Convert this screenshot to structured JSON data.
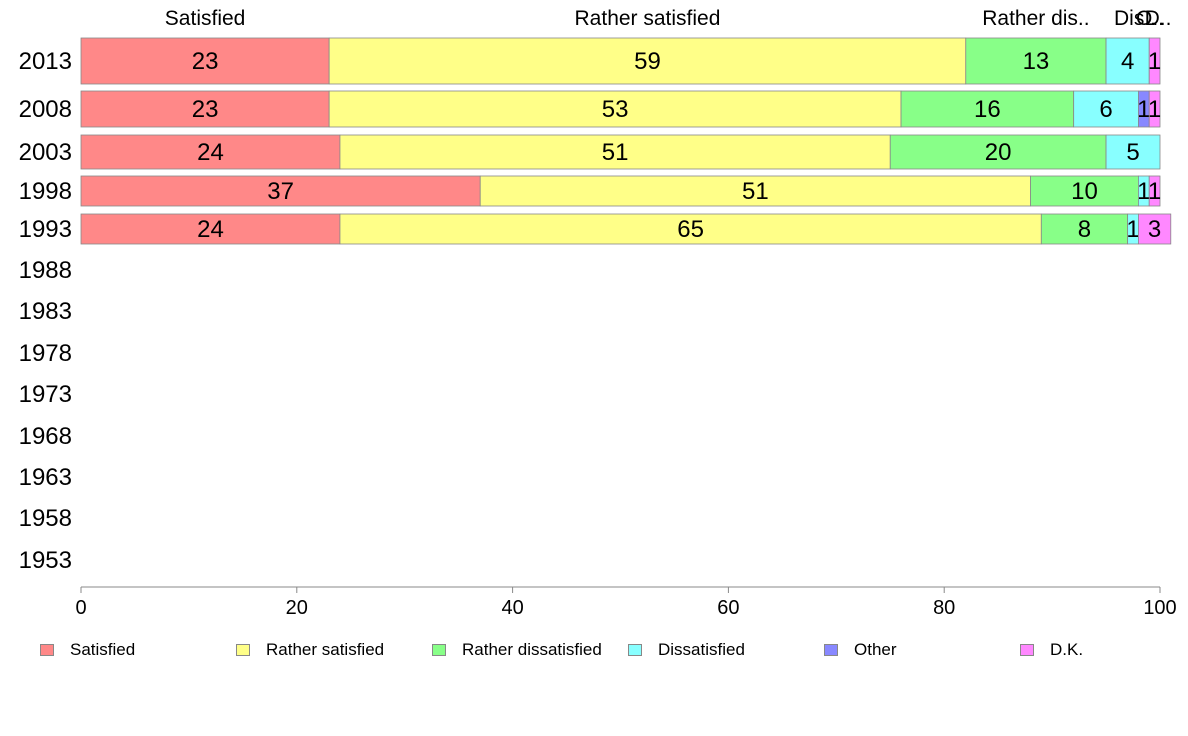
{
  "chart_data": {
    "type": "bar",
    "orientation": "horizontal",
    "stacked": true,
    "title": "",
    "xlabel": "",
    "ylabel": "",
    "xlim": [
      0,
      100
    ],
    "x_ticks": [
      "0",
      "20",
      "40",
      "60",
      "80",
      "100"
    ],
    "categories": [
      "2013",
      "2008",
      "2003",
      "1998",
      "1993",
      "1988",
      "1983",
      "1978",
      "1973",
      "1968",
      "1963",
      "1958",
      "1953"
    ],
    "top_labels": [
      "Satisfied",
      "Rather satisfied",
      "Rather dis..",
      "Dis..",
      "O..",
      "D.."
    ],
    "series": [
      {
        "name": "Satisfied",
        "color": "#ff8888",
        "values": [
          23,
          23,
          24,
          37,
          24,
          null,
          null,
          null,
          null,
          null,
          null,
          null,
          null
        ],
        "labels": [
          "23",
          "23",
          "24",
          "37",
          "24"
        ]
      },
      {
        "name": "Rather satisfied",
        "color": "#ffff88",
        "values": [
          59,
          53,
          51,
          51,
          65,
          null,
          null,
          null,
          null,
          null,
          null,
          null,
          null
        ],
        "labels": [
          "59",
          "53",
          "51",
          "51",
          "65"
        ]
      },
      {
        "name": "Rather dissatisfied",
        "color": "#88ff88",
        "values": [
          13,
          16,
          20,
          10,
          8,
          null,
          null,
          null,
          null,
          null,
          null,
          null,
          null
        ],
        "labels": [
          "13",
          "16",
          "20",
          "10",
          "8"
        ]
      },
      {
        "name": "Dissatisfied",
        "color": "#88ffff",
        "values": [
          4,
          6,
          5,
          1,
          1,
          null,
          null,
          null,
          null,
          null,
          null,
          null,
          null
        ],
        "labels": [
          "4",
          "6",
          "5",
          "1",
          "1"
        ]
      },
      {
        "name": "Other",
        "color": "#8888ff",
        "values": [
          0,
          1,
          0,
          0,
          0,
          null,
          null,
          null,
          null,
          null,
          null,
          null,
          null
        ],
        "labels": [
          "",
          "1",
          "",
          "",
          ""
        ]
      },
      {
        "name": "D.K.",
        "color": "#ff88ff",
        "values": [
          1,
          1,
          0,
          1,
          3,
          null,
          null,
          null,
          null,
          null,
          null,
          null,
          null
        ],
        "labels": [
          "1",
          "1",
          "",
          "1",
          "3"
        ]
      }
    ],
    "legend": {
      "position": "bottom"
    },
    "grid": false
  }
}
